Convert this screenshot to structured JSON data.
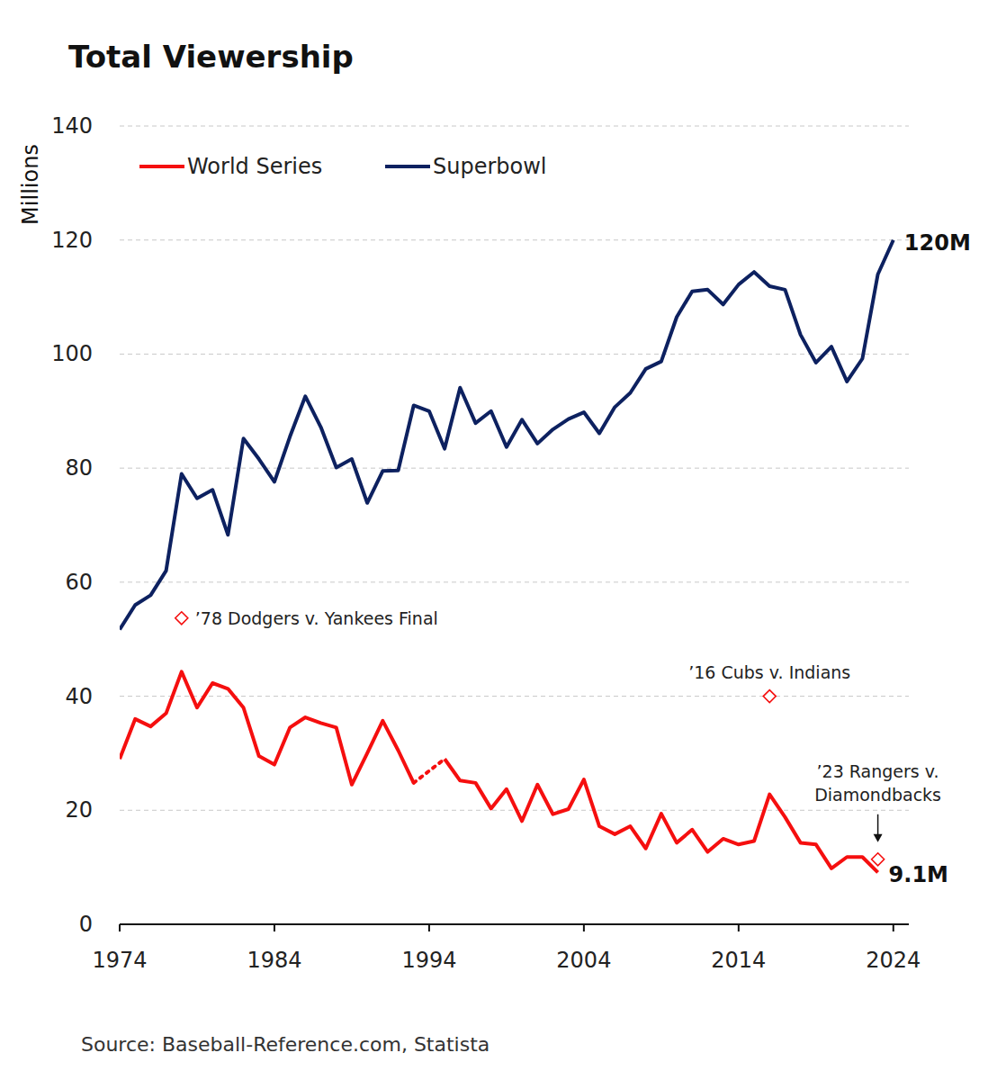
{
  "chart_data": {
    "type": "line",
    "title": "Total Viewership",
    "y_label": "Millions",
    "source": "Source: Baseball-Reference.com, Statista",
    "x": [
      1974,
      1975,
      1976,
      1977,
      1978,
      1979,
      1980,
      1981,
      1982,
      1983,
      1984,
      1985,
      1986,
      1987,
      1988,
      1989,
      1990,
      1991,
      1992,
      1993,
      1994,
      1995,
      1996,
      1997,
      1998,
      1999,
      2000,
      2001,
      2002,
      2003,
      2004,
      2005,
      2006,
      2007,
      2008,
      2009,
      2010,
      2011,
      2012,
      2013,
      2014,
      2015,
      2016,
      2017,
      2018,
      2019,
      2020,
      2021,
      2022,
      2023,
      2024
    ],
    "series": [
      {
        "name": "World Series",
        "color": "#f50f0f",
        "values": [
          29,
          36,
          34.7,
          37,
          44.3,
          38,
          42.3,
          41.3,
          38,
          29.5,
          28,
          34.5,
          36.3,
          35.3,
          34.5,
          24.5,
          30,
          35.7,
          30.5,
          24.8,
          null,
          29,
          25.2,
          24.8,
          20.3,
          23.7,
          18.1,
          24.5,
          19.3,
          20.2,
          25.4,
          17.2,
          15.8,
          17.2,
          13.3,
          19.4,
          14.3,
          16.6,
          12.7,
          15,
          14,
          14.6,
          22.8,
          18.8,
          14.3,
          14,
          9.8,
          11.8,
          11.8,
          9.1,
          null
        ]
      },
      {
        "name": "Superbowl",
        "color": "#0d2160",
        "values": [
          51.7,
          56,
          57.7,
          62,
          79,
          74.7,
          76.2,
          68.3,
          85.2,
          81.6,
          77.6,
          85.5,
          92.6,
          87.2,
          80.1,
          81.6,
          73.9,
          79.5,
          79.6,
          91,
          90,
          83.4,
          94.1,
          87.9,
          90,
          83.7,
          88.5,
          84.3,
          86.8,
          88.6,
          89.8,
          86.1,
          90.7,
          93.2,
          97.4,
          98.7,
          106.5,
          111,
          111.3,
          108.7,
          112.2,
          114.4,
          111.9,
          111.3,
          103.4,
          98.5,
          101.3,
          95.2,
          99.2,
          114,
          120
        ]
      }
    ],
    "xlim": [
      1974,
      2025
    ],
    "xticks": [
      1974,
      1984,
      1994,
      2004,
      2014,
      2024
    ],
    "ylim": [
      0,
      140
    ],
    "yticks": [
      0,
      20,
      40,
      60,
      80,
      100,
      120,
      140
    ],
    "grid": true,
    "legend": "top",
    "annotations": [
      {
        "text": "’78 Dodgers v. Yankees Final",
        "x": 1978,
        "y": 53.7,
        "marker": "diamond"
      },
      {
        "text": "’16 Cubs v. Indians",
        "x": 2016,
        "y": 40,
        "marker": "diamond"
      },
      {
        "text": [
          "’23 Rangers v.",
          "Diamondbacks"
        ],
        "x": 2023,
        "y": 11.4,
        "marker": "diamond"
      },
      {
        "text": "120M",
        "x": 2024,
        "y": 120
      },
      {
        "text": "9.1M",
        "x": 2023,
        "y": 9.1
      }
    ]
  }
}
